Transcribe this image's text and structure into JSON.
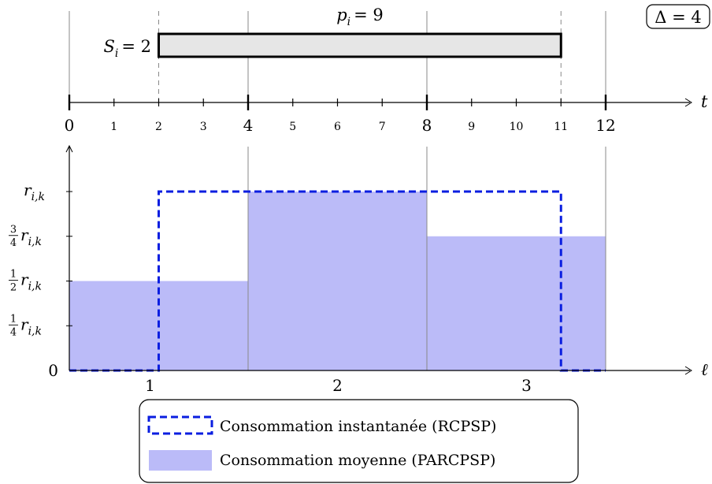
{
  "badge": {
    "label": "Δ = 4"
  },
  "task": {
    "start_label": "S",
    "start_sub": "i",
    "start_val": "= 2",
    "dur_label": "p",
    "dur_sub": "i",
    "dur_val": "= 9"
  },
  "time_axis": {
    "label": "t",
    "major_ticks": [
      "0",
      "4",
      "8",
      "12"
    ],
    "minor_ticks": [
      "1",
      "2",
      "3",
      "5",
      "6",
      "7",
      "9",
      "10",
      "11"
    ]
  },
  "resource_axis": {
    "x_label": "ℓ",
    "interval_labels": [
      "1",
      "2",
      "3"
    ],
    "y_zero": "0",
    "y_levels": [
      {
        "frac_num": "1",
        "frac_den": "4",
        "base": "r",
        "sub": "i,k"
      },
      {
        "frac_num": "1",
        "frac_den": "2",
        "base": "r",
        "sub": "i,k"
      },
      {
        "frac_num": "3",
        "frac_den": "4",
        "base": "r",
        "sub": "i,k"
      },
      {
        "frac_num": "",
        "frac_den": "",
        "base": "r",
        "sub": "i,k"
      }
    ]
  },
  "chart_data": {
    "type": "area",
    "task": {
      "start": 2,
      "end": 11,
      "duration": 9
    },
    "intervals": [
      {
        "label": "1",
        "from": 0,
        "to": 4,
        "average_fraction": 0.5
      },
      {
        "label": "2",
        "from": 4,
        "to": 8,
        "average_fraction": 1.0
      },
      {
        "label": "3",
        "from": 8,
        "to": 12,
        "average_fraction": 0.75
      }
    ],
    "instantaneous": [
      {
        "from": 0,
        "to": 2,
        "fraction": 0
      },
      {
        "from": 2,
        "to": 11,
        "fraction": 1
      },
      {
        "from": 11,
        "to": 12,
        "fraction": 0
      }
    ],
    "colors": {
      "average_fill": "#bbbbf8",
      "instantaneous_stroke": "#0a1ee0"
    }
  },
  "legend": {
    "instant": "Consommation instantanée (RCPSP)",
    "average": "Consommation moyenne (PARCPSP)"
  }
}
